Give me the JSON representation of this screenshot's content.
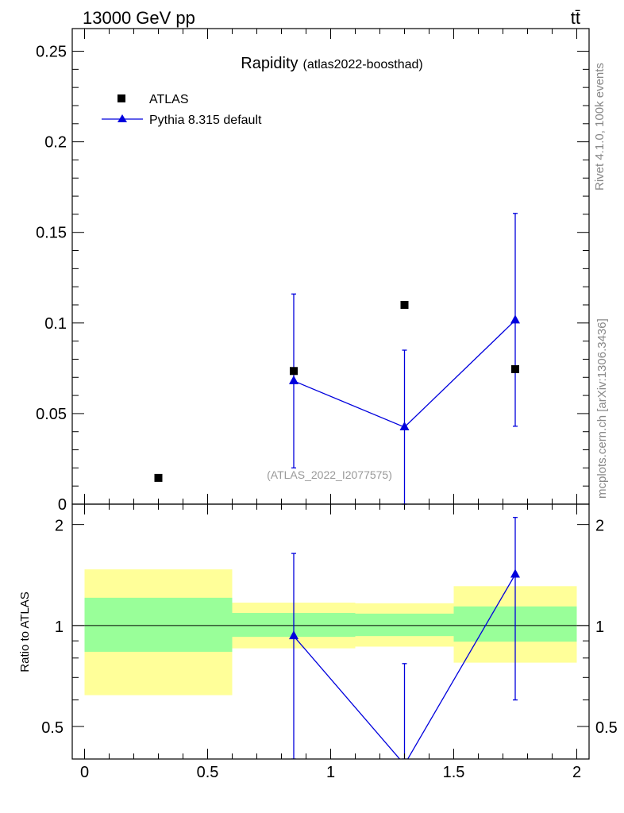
{
  "header": {
    "left": "13000 GeV pp",
    "right": "tt̄"
  },
  "side_labels": {
    "rivet": "Rivet 4.1.0,  100k events",
    "mcplots": "mcplots.cern.ch [arXiv:1306.3436]"
  },
  "chart_data": {
    "type": "scatter",
    "title_main": "Rapidity",
    "title_sub": "(atlas2022-boosthad)",
    "watermark": "(ATLAS_2022_I2077575)",
    "xlim": [
      -0.05,
      2.05
    ],
    "x_ticks": [
      0,
      0.5,
      1,
      1.5,
      2
    ],
    "x_tick_labels": [
      "0",
      "0.5",
      "1",
      "1.5",
      "2"
    ],
    "main": {
      "ylim": [
        0,
        0.2625
      ],
      "y_ticks": [
        0,
        0.05,
        0.1,
        0.15,
        0.2,
        0.25
      ],
      "y_tick_labels": [
        "0",
        "0.05",
        "0.1",
        "0.15",
        "0.2",
        "0.25"
      ],
      "series": [
        {
          "name": "ATLAS",
          "marker": "square",
          "color": "#000000",
          "x": [
            0.3,
            0.85,
            1.3,
            1.75
          ],
          "y": [
            0.0145,
            0.0735,
            0.11,
            0.0745
          ]
        },
        {
          "name": "Pythia 8.315 default",
          "marker": "triangle",
          "color": "#0000dd",
          "x": [
            0.85,
            1.3,
            1.75
          ],
          "y": [
            0.068,
            0.0425,
            0.1015
          ],
          "yerr_low": [
            0.048,
            0.0425,
            0.0585
          ],
          "yerr_high": [
            0.048,
            0.0425,
            0.059
          ]
        }
      ]
    },
    "ratio": {
      "ylabel": "Ratio to ATLAS",
      "log": true,
      "ylim": [
        0.4,
        2.3
      ],
      "y_ticks": [
        0.5,
        1,
        2
      ],
      "y_tick_labels": [
        "0.5",
        "1",
        "2"
      ],
      "bands": [
        {
          "x": [
            0,
            0.6
          ],
          "yellow": [
            0.62,
            1.47
          ],
          "green": [
            0.835,
            1.21
          ]
        },
        {
          "x": [
            0.6,
            1.1
          ],
          "yellow": [
            0.855,
            1.17
          ],
          "green": [
            0.925,
            1.09
          ]
        },
        {
          "x": [
            1.1,
            1.5
          ],
          "yellow": [
            0.865,
            1.165
          ],
          "green": [
            0.93,
            1.085
          ]
        },
        {
          "x": [
            1.5,
            2.0
          ],
          "yellow": [
            0.775,
            1.31
          ],
          "green": [
            0.895,
            1.14
          ]
        }
      ],
      "series": {
        "name": "Pythia 8.315 default",
        "color": "#0000dd",
        "x": [
          0.85,
          1.3,
          1.75
        ],
        "y": [
          0.93,
          0.385,
          1.42
        ],
        "yerr_low": [
          0.93,
          0.385,
          0.82
        ],
        "yerr_high": [
          0.71,
          0.385,
          0.68
        ]
      }
    }
  }
}
